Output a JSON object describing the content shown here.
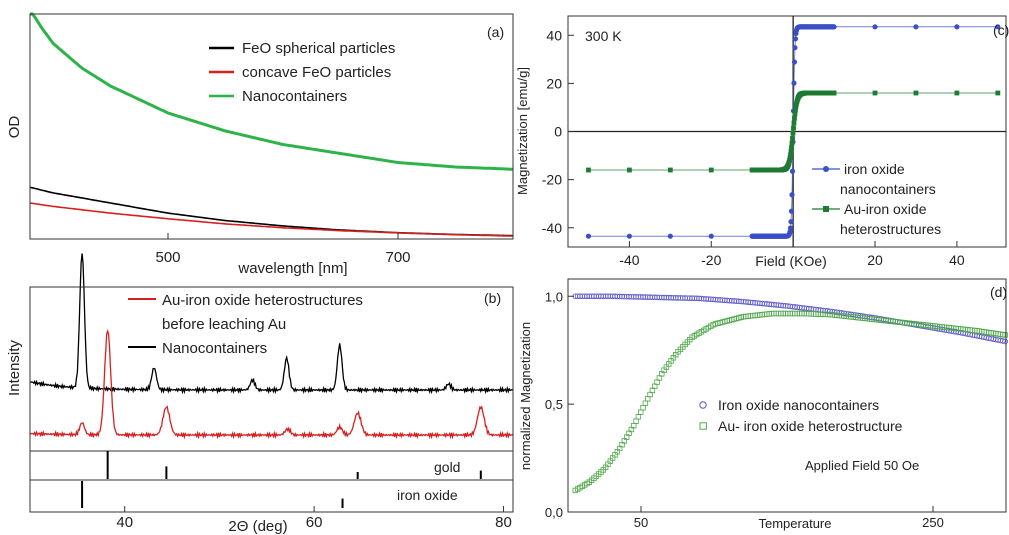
{
  "chart_data": [
    {
      "panel": "(a)",
      "type": "line",
      "xlabel": "wavelength [nm]",
      "ylabel": "OD",
      "xlim": [
        380,
        800
      ],
      "ylim": [
        0,
        1
      ],
      "x_ticks": [
        500,
        700
      ],
      "grid": false,
      "legend_position": "top-right",
      "series": [
        {
          "name": "FeO spherical particles",
          "color": "#000000",
          "x": [
            380,
            400,
            450,
            500,
            550,
            600,
            650,
            700,
            750,
            800
          ],
          "y": [
            0.23,
            0.205,
            0.16,
            0.115,
            0.082,
            0.058,
            0.04,
            0.028,
            0.02,
            0.015
          ]
        },
        {
          "name": "concave FeO particles",
          "color": "#d62020",
          "x": [
            380,
            400,
            450,
            500,
            550,
            600,
            650,
            700,
            750,
            800
          ],
          "y": [
            0.16,
            0.145,
            0.115,
            0.09,
            0.067,
            0.05,
            0.037,
            0.027,
            0.019,
            0.013
          ]
        },
        {
          "name": "Nanocontainers",
          "color": "#2eb34a",
          "x": [
            380,
            390,
            400,
            425,
            450,
            475,
            500,
            550,
            600,
            650,
            700,
            750,
            800
          ],
          "y": [
            1.02,
            0.94,
            0.87,
            0.76,
            0.68,
            0.62,
            0.56,
            0.48,
            0.42,
            0.38,
            0.34,
            0.32,
            0.31
          ]
        }
      ]
    },
    {
      "panel": "(b)",
      "type": "line",
      "xlabel": "2Θ (deg)",
      "ylabel": "Intensity",
      "xlim": [
        30,
        81
      ],
      "x_ticks": [
        40,
        60,
        80
      ],
      "grid": false,
      "legend_position": "top-right",
      "series": [
        {
          "name": "Nanocontainers",
          "color": "#000000",
          "baseline": 0.55,
          "peaks": [
            [
              35.5,
              1.35,
              0.35
            ],
            [
              43.1,
              0.22,
              0.35
            ],
            [
              53.5,
              0.1,
              0.35
            ],
            [
              57.1,
              0.32,
              0.35
            ],
            [
              62.7,
              0.45,
              0.35
            ],
            [
              74.2,
              0.06,
              0.35
            ]
          ]
        },
        {
          "name": "Au-iron oxide heterostructures",
          "name_line2": "before leaching Au",
          "color": "#d62020",
          "baseline": 0.1,
          "peaks": [
            [
              35.5,
              0.12,
              0.35
            ],
            [
              38.2,
              1.05,
              0.45
            ],
            [
              44.4,
              0.28,
              0.5
            ],
            [
              57.2,
              0.06,
              0.4
            ],
            [
              62.7,
              0.08,
              0.4
            ],
            [
              64.6,
              0.22,
              0.5
            ],
            [
              77.6,
              0.28,
              0.5
            ]
          ]
        }
      ],
      "reference_patterns": [
        {
          "label": "gold",
          "lines": [
            [
              38.2,
              1.0
            ],
            [
              44.4,
              0.45
            ],
            [
              64.6,
              0.25
            ],
            [
              77.6,
              0.3
            ]
          ]
        },
        {
          "label": "iron oxide",
          "lines": [
            [
              35.5,
              1.0
            ],
            [
              63.0,
              0.35
            ]
          ]
        }
      ]
    },
    {
      "panel": "(c)",
      "type": "scatter",
      "annotation": "300 K",
      "xlabel": "Field (KOe)",
      "ylabel": "Magnetization [emu/g]",
      "xlim": [
        -55,
        52
      ],
      "ylim": [
        -48,
        48
      ],
      "x_ticks": [
        -40,
        -20,
        20,
        40
      ],
      "y_ticks": [
        -40,
        -20,
        0,
        20,
        40
      ],
      "grid": false,
      "legend_position": "bottom-right",
      "series": [
        {
          "name": "iron oxide",
          "name_line2": "nanocontainers",
          "color": "#3b4fc8",
          "marker": "circle",
          "saturation": 43.5,
          "slope_field": 0.4
        },
        {
          "name": "Au-iron oxide",
          "name_line2": "heterostructures",
          "color": "#1f7a32",
          "marker": "square",
          "saturation": 16,
          "slope_field": 0.9
        }
      ],
      "sparse_fields": [
        -50,
        -40,
        -30,
        -20,
        -10,
        10,
        20,
        30,
        40,
        50
      ],
      "dense_field_range": [
        -10,
        10
      ]
    },
    {
      "panel": "(d)",
      "type": "scatter",
      "annotation": "Applied Field 50 Oe",
      "xlabel": "Temperature",
      "ylabel": "normalized Magnetization",
      "xlim": [
        0,
        300
      ],
      "ylim": [
        0,
        1.08
      ],
      "x_ticks": [
        50,
        250
      ],
      "y_ticks": [
        0.0,
        0.5,
        1.0
      ],
      "y_tick_labels": [
        "0,0",
        "0,5",
        "1,0"
      ],
      "grid": false,
      "legend_position": "bottom-center",
      "series": [
        {
          "name": "Iron oxide nanocontainers",
          "color": "#5a55c8",
          "marker": "open-circle",
          "x": [
            5,
            30,
            60,
            90,
            120,
            150,
            180,
            210,
            240,
            270,
            300
          ],
          "y": [
            1.0,
            1.0,
            0.995,
            0.99,
            0.975,
            0.955,
            0.93,
            0.9,
            0.865,
            0.83,
            0.79
          ]
        },
        {
          "name": "Au- iron oxide heterostructure",
          "color": "#4fa84a",
          "marker": "open-square",
          "x": [
            5,
            15,
            25,
            35,
            45,
            55,
            65,
            75,
            85,
            100,
            120,
            140,
            160,
            180,
            200,
            220,
            240,
            260,
            280,
            300
          ],
          "y": [
            0.1,
            0.14,
            0.2,
            0.29,
            0.4,
            0.53,
            0.65,
            0.74,
            0.81,
            0.87,
            0.905,
            0.92,
            0.92,
            0.915,
            0.9,
            0.885,
            0.87,
            0.855,
            0.84,
            0.82
          ]
        }
      ]
    }
  ]
}
